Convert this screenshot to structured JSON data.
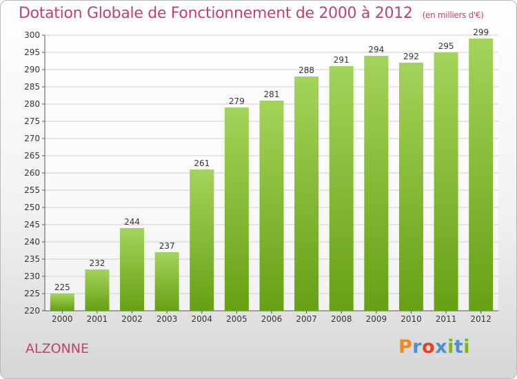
{
  "header": {
    "title": "Dotation Globale de Fonctionnement de 2000 à 2012",
    "unit_note": "(en milliers d'€)"
  },
  "footer": {
    "city": "ALZONNE",
    "logo_text": "Proxiti",
    "logo_colors": [
      "#f08a1c",
      "#4a90d9",
      "#e8421c",
      "#4a90d9",
      "#7ab80e",
      "#4a90d9",
      "#7ab80e"
    ]
  },
  "colors": {
    "bar_top": "#a4d35a",
    "bar_bottom": "#67a014",
    "grid": "#cfcfcf",
    "title": "#c4406b"
  },
  "chart_data": {
    "type": "bar",
    "title": "Dotation Globale de Fonctionnement de 2000 à 2012",
    "subtitle": "(en milliers d'€)",
    "xlabel": "",
    "ylabel": "",
    "categories": [
      "2000",
      "2001",
      "2002",
      "2003",
      "2004",
      "2005",
      "2006",
      "2007",
      "2008",
      "2009",
      "2010",
      "2011",
      "2012"
    ],
    "values": [
      225,
      232,
      244,
      237,
      261,
      279,
      281,
      288,
      291,
      294,
      292,
      295,
      299
    ],
    "ylim": [
      220,
      300
    ],
    "yticks": [
      220,
      225,
      230,
      235,
      240,
      245,
      250,
      255,
      260,
      265,
      270,
      275,
      280,
      285,
      290,
      295,
      300
    ],
    "grid": true,
    "data_labels": true
  }
}
